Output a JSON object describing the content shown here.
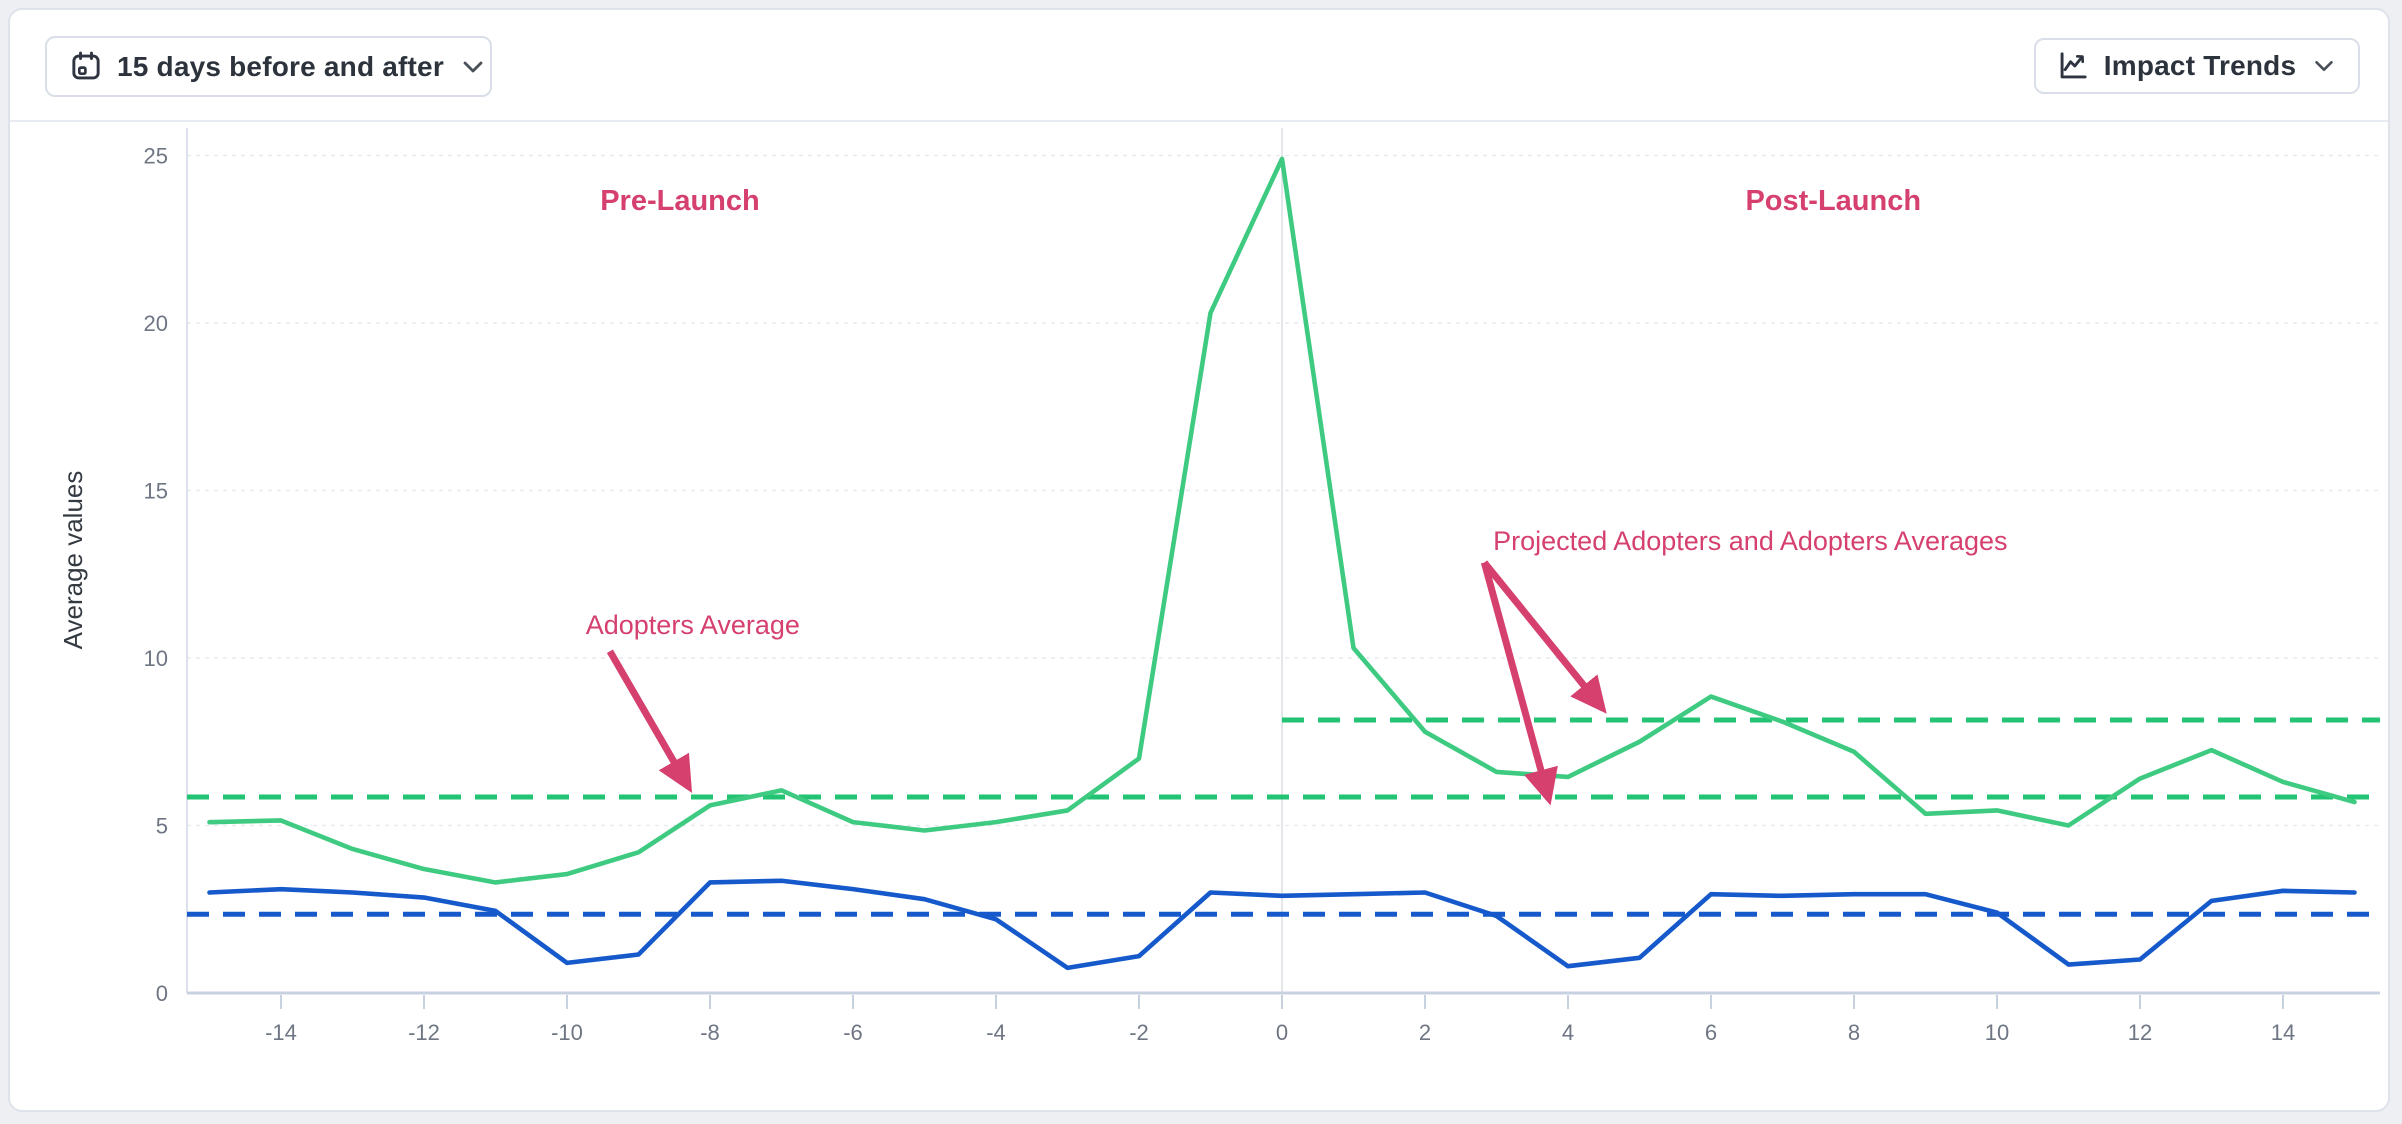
{
  "toolbar": {
    "date_range_button": {
      "label": "15 days before and after",
      "icon": "calendar-icon"
    },
    "trends_button": {
      "label": "Impact Trends",
      "icon": "line-chart-icon"
    }
  },
  "chart_data": {
    "type": "line",
    "ylabel": "Average values",
    "xlim": [
      -15,
      15
    ],
    "ylim": [
      0,
      25.5
    ],
    "xticks": [
      -14,
      -12,
      -10,
      -8,
      -6,
      -4,
      -2,
      0,
      2,
      4,
      6,
      8,
      10,
      12,
      14
    ],
    "yticks": [
      0,
      5,
      10,
      15,
      20,
      25
    ],
    "grid": "horizontal-dashed",
    "launch_divider_x": 0,
    "x": [
      -15,
      -14,
      -13,
      -12,
      -11,
      -10,
      -9,
      -8,
      -7,
      -6,
      -5,
      -4,
      -3,
      -2,
      -1,
      0,
      1,
      2,
      3,
      4,
      5,
      6,
      7,
      8,
      9,
      10,
      11,
      12,
      13,
      14,
      15
    ],
    "series": [
      {
        "id": "adopters",
        "color": "#3ecb81",
        "style": "solid",
        "values": [
          5.1,
          5.15,
          4.3,
          3.7,
          3.3,
          3.55,
          4.2,
          5.6,
          6.05,
          5.1,
          4.85,
          5.1,
          5.45,
          7.0,
          20.3,
          24.9,
          10.3,
          7.8,
          6.6,
          6.45,
          7.5,
          8.85,
          8.1,
          7.2,
          5.35,
          5.45,
          5.0,
          6.4,
          7.25,
          6.3,
          5.7
        ]
      },
      {
        "id": "comparison",
        "color": "#1659cb",
        "style": "solid",
        "values": [
          3.0,
          3.1,
          3.0,
          2.85,
          2.45,
          0.9,
          1.15,
          3.3,
          3.35,
          3.1,
          2.8,
          2.2,
          0.75,
          1.1,
          3.0,
          2.9,
          2.95,
          3.0,
          2.3,
          0.8,
          1.05,
          2.95,
          2.9,
          2.95,
          2.95,
          2.4,
          0.85,
          1.0,
          2.75,
          3.05,
          3.0
        ]
      }
    ],
    "reference_lines": [
      {
        "id": "adopters-average",
        "color": "#22c373",
        "style": "dashed",
        "value": 5.85,
        "x_start": null
      },
      {
        "id": "projected-adopters-average",
        "color": "#22c373",
        "style": "dashed",
        "value": 8.15,
        "x_start": 0
      },
      {
        "id": "comparison-average",
        "color": "#1659cb",
        "style": "dashed",
        "value": 2.35,
        "x_start": null
      }
    ],
    "annotations": [
      {
        "id": "pre-launch",
        "text": "Pre-Launch",
        "color": "#d5406f",
        "bold": true,
        "x": -8.42,
        "value": 23.37,
        "arrows": []
      },
      {
        "id": "post-launch",
        "text": "Post-Launch",
        "color": "#d5406f",
        "bold": true,
        "x": 7.71,
        "value": 23.37,
        "arrows": []
      },
      {
        "id": "adopters-average-label",
        "text": "Adopters Average",
        "color": "#d5406f",
        "bold": false,
        "x": -8.24,
        "value": 10.72,
        "arrows": [
          {
            "from": {
              "x": -9.4,
              "value": 10.2
            },
            "to": {
              "x": -8.3,
              "value": 6.15
            }
          }
        ]
      },
      {
        "id": "projected-and-adopters-averages-label",
        "text": "Projected Adopters and Adopters Averages",
        "color": "#d5406f",
        "bold": false,
        "x": 6.55,
        "value": 13.22,
        "arrows": [
          {
            "from": {
              "x": 2.83,
              "value": 12.85
            },
            "to": {
              "x": 3.73,
              "value": 5.8
            }
          },
          {
            "from": {
              "x": 2.83,
              "value": 12.85
            },
            "to": {
              "x": 4.48,
              "value": 8.5
            }
          }
        ]
      }
    ],
    "colors": {
      "annotation": "#d5406f",
      "grid": "#e8eaef",
      "axis": "#c8d1e0",
      "tick_label": "#6f7683",
      "ylabel": "#343a42"
    }
  }
}
